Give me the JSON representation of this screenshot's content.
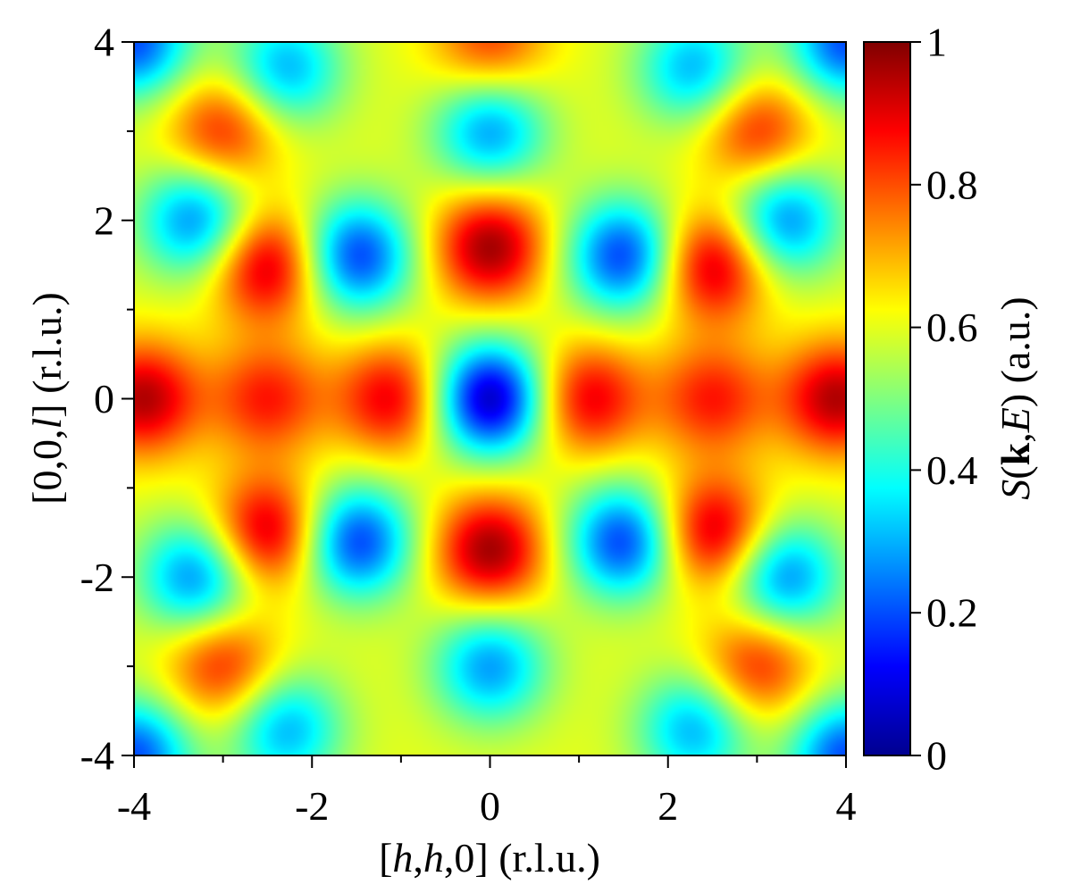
{
  "chart_data": {
    "type": "heatmap",
    "xlabel": {
      "prefix": "[",
      "v1": "h",
      "c1": ",",
      "v2": "h",
      "c2": ",0] (r.l.u.)"
    },
    "ylabel": {
      "prefix": "[0,0,",
      "v1": "l",
      "suffix": "] (r.l.u.)"
    },
    "colorbar_label": {
      "v1": "S",
      "p1": "(",
      "b1": "k",
      "c1": ",",
      "v2": "E",
      "suffix": ") (a.u.)"
    },
    "xlim": [
      -4,
      4
    ],
    "ylim": [
      -4,
      4
    ],
    "x_ticks": [
      "-4",
      "-2",
      "0",
      "2",
      "4"
    ],
    "y_ticks": [
      "-4",
      "-2",
      "0",
      "2",
      "4"
    ],
    "colorbar_range": [
      0,
      1
    ],
    "colorbar_ticks": [
      "0",
      "0.2",
      "0.4",
      "0.6",
      "0.8",
      "1"
    ],
    "colormap": "jet",
    "grid": false,
    "symmetry": "mirror in h and l",
    "background_value": 0.6,
    "features": [
      {
        "h": 0,
        "l": 0,
        "value": 0.05,
        "kind": "minimum"
      },
      {
        "h": 0,
        "l": 1.7,
        "value": 0.97,
        "kind": "maximum"
      },
      {
        "h": 0,
        "l": -1.7,
        "value": 0.97,
        "kind": "maximum"
      },
      {
        "h": 0,
        "l": 3.0,
        "value": 0.28,
        "kind": "minimum"
      },
      {
        "h": 0,
        "l": -3.0,
        "value": 0.28,
        "kind": "minimum"
      },
      {
        "h": 0,
        "l": 4.0,
        "value": 0.82,
        "kind": "maximum"
      },
      {
        "h": 1.1,
        "l": 0,
        "value": 0.9,
        "kind": "maximum"
      },
      {
        "h": -1.1,
        "l": 0,
        "value": 0.9,
        "kind": "maximum"
      },
      {
        "h": 1.5,
        "l": 1.6,
        "value": 0.18,
        "kind": "minimum"
      },
      {
        "h": -1.5,
        "l": 1.6,
        "value": 0.18,
        "kind": "minimum"
      },
      {
        "h": 1.5,
        "l": -1.6,
        "value": 0.18,
        "kind": "minimum"
      },
      {
        "h": -1.5,
        "l": -1.6,
        "value": 0.18,
        "kind": "minimum"
      },
      {
        "h": 2.5,
        "l": 1.5,
        "value": 0.95,
        "kind": "maximum"
      },
      {
        "h": -2.5,
        "l": 1.5,
        "value": 0.95,
        "kind": "maximum"
      },
      {
        "h": 2.5,
        "l": -1.5,
        "value": 0.95,
        "kind": "maximum"
      },
      {
        "h": -2.5,
        "l": -1.5,
        "value": 0.95,
        "kind": "maximum"
      },
      {
        "h": 2.5,
        "l": 0,
        "value": 0.85,
        "kind": "maximum"
      },
      {
        "h": -2.5,
        "l": 0,
        "value": 0.85,
        "kind": "maximum"
      },
      {
        "h": 3.9,
        "l": 0,
        "value": 0.95,
        "kind": "maximum"
      },
      {
        "h": -3.9,
        "l": 0,
        "value": 0.95,
        "kind": "maximum"
      },
      {
        "h": 3.3,
        "l": 2.0,
        "value": 0.25,
        "kind": "minimum"
      },
      {
        "h": -3.3,
        "l": 2.0,
        "value": 0.25,
        "kind": "minimum"
      },
      {
        "h": 3.3,
        "l": -2.0,
        "value": 0.25,
        "kind": "minimum"
      },
      {
        "h": -3.3,
        "l": -2.0,
        "value": 0.25,
        "kind": "minimum"
      },
      {
        "h": 4.0,
        "l": 4.0,
        "value": 0.2,
        "kind": "minimum"
      },
      {
        "h": -4.0,
        "l": 4.0,
        "value": 0.2,
        "kind": "minimum"
      },
      {
        "h": 4.0,
        "l": -4.0,
        "value": 0.2,
        "kind": "minimum"
      },
      {
        "h": -4.0,
        "l": -4.0,
        "value": 0.2,
        "kind": "minimum"
      },
      {
        "h": 3.0,
        "l": 3.0,
        "value": 0.85,
        "kind": "maximum"
      },
      {
        "h": -3.0,
        "l": 3.0,
        "value": 0.85,
        "kind": "maximum"
      },
      {
        "h": 3.0,
        "l": -3.0,
        "value": 0.85,
        "kind": "maximum"
      },
      {
        "h": -3.0,
        "l": -3.0,
        "value": 0.85,
        "kind": "maximum"
      },
      {
        "h": 2.3,
        "l": 3.7,
        "value": 0.3,
        "kind": "minimum"
      },
      {
        "h": -2.3,
        "l": 3.7,
        "value": 0.3,
        "kind": "minimum"
      },
      {
        "h": 2.3,
        "l": -3.7,
        "value": 0.3,
        "kind": "minimum"
      },
      {
        "h": -2.3,
        "l": -3.7,
        "value": 0.3,
        "kind": "minimum"
      }
    ]
  }
}
